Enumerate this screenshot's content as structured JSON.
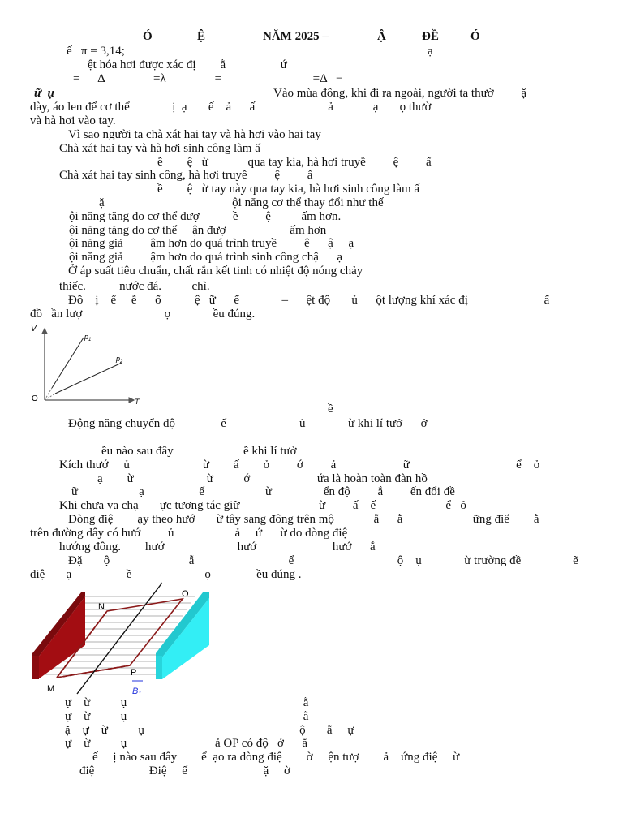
{
  "title": {
    "p1": "Ó",
    "p2": "Ệ",
    "p3": "NĂM 2025 –",
    "p4": "Ậ",
    "p5": "ĐỀ",
    "p6": "Ó"
  },
  "lines": {
    "l1a": "ế   π = 3,14;",
    "l1b": "ạ",
    "l2": "ệt hóa hơi được xác đị        ằ                  ứ",
    "l3": "=      Δ                =λ                =                              =Δ   −",
    "l4a": "ữ  ụ",
    "l4b": "Vào mùa đông, khi đi ra ngoài, người ta thườ         ặ",
    "l5": "dày, áo len để cơ thể              ị  ạ       ế    ả      ấ                        ả             ạ       ọ thườ",
    "l6": "và hà hơi vào tay.",
    "q1": "Vì sao người ta chà xát hai tay và hà hơi vào hai tay",
    "q1a": "Chà xát hai tay và hà hơi sinh công làm ấ",
    "q1a2": "ề        ệ   ừ             qua tay kia, hà hơi truyề         ệ         ấ",
    "q1b": "Chà xát hai tay sinh công, hà hơi truyề         ệ         ấ",
    "q1b2": "ề        ệ   ừ tay này qua tay kia, hà hơi sinh công làm ấ",
    "q2": "ặ                                          ội năng cơ thể thay đổi như thế",
    "q2a": "ội năng tăng do cơ thể đượ           ề         ệ          ấm hơn.",
    "q2b": "ội năng tăng do cơ thể     ận đượ                     ấm hơn",
    "q2c": "ội năng giả         ậm hơn do quá trình truyề         ệ      ậ     ạ",
    "q2d": "ội năng giả         ậm hơn do quá trình sinh công chậ      ạ",
    "q3": "Ở áp suất tiêu chuẩn, chất rắn kết tinh có nhiệt độ nóng chảy",
    "q3a": "thiếc.           nước đá.          chì.",
    "q4": "Đồ    ị    ể     ễ      ố           ệ   ữ      ể              –      ệt độ       ủ      ột lượng khí xác đị                         ấ",
    "q4b": "đồ   ần lượ                           ọ              ều đúng.",
    "q5h": "ề",
    "q5": "Động năng chuyển độ               ế                        ủ              ừ khi lí tưở      ở",
    "q6": "ều nào sau đây                       ề khi lí tưở",
    "q6a": "Kích thướ     ủ                        ừ        ấ        ỏ         ớ         ả                      ữ                                   ể    ỏ",
    "q6b": "ạ        ừ                        ừ          ớ                      ứa là hoàn toàn đàn hồ",
    "q6c": "ữ                    ạ                  ế                    ừ                 ển độ         ắ         ến đổi đề",
    "q6d": "Khi chưa va chạ       ực tương tác giữ                          ừ         ấ    ế                       ể   ỏ",
    "q7": "Dòng điệ        ạy theo hướ       ừ tây sang đông trên mộ             ẫ      ằ                       ững điể        ằ",
    "q7b": "trên đường dây có hướ         ủ                    ả     ứ      ừ do dòng điệ",
    "q7c": "hướng đông.        hướ                        hướ                         hướ      ắ",
    "q8": "Đặ       ộ                          ẫ                               ể                                  ộ    ụ              ừ trường đề                 ẽ",
    "q8b": "điệ       ạ                  ề                        ọ               ều đúng .",
    "q8a": "ự    ừ          ụ                                                          ằ",
    "q8bb": "ự    ừ          ụ                                                          ằ",
    "q8c": "ặ    ự    ừ          ụ                                                   ộ       ẫ     ự",
    "q8d": "ự    ừ          ụ                             ả OP có độ   ớ      ằ",
    "q9": "ế     ị nào sau đây        ể  ạo ra dòng điệ        ờ     ện tượ        ả    ứng điệ     ừ",
    "q9a": "điệ                  Điệ     ế                         ặ     ờ"
  },
  "graph": {
    "y_axis": "V",
    "x_axis": "T",
    "origin": "O",
    "line1": "p",
    "line1_sub": "1",
    "line2": "p",
    "line2_sub": "2"
  },
  "figure": {
    "N": "N",
    "O": "O",
    "P": "P",
    "M": "M",
    "B": "B",
    "B_sub": "1",
    "colors": {
      "left_plate": "#a30d12",
      "right_plate": "#33eef5",
      "loop": "#8b1a1a",
      "field_vector": "#2233dd"
    }
  }
}
